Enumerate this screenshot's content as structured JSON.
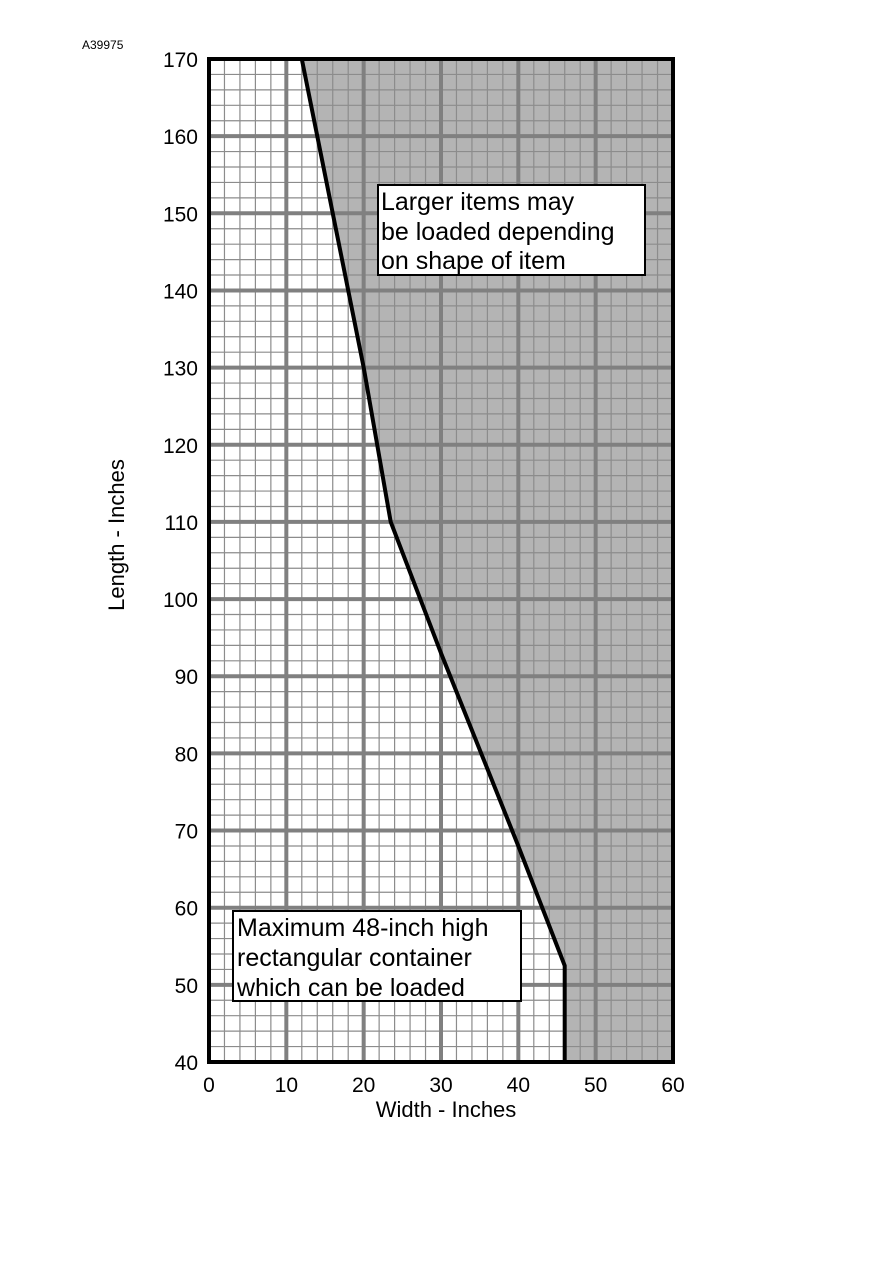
{
  "figure_id": "A39975",
  "colors": {
    "shaded_region": "#b4b4b4",
    "major_grid": "#808080",
    "minor_grid": "#8c8c8c",
    "boundary": "#000000",
    "background": "#ffffff"
  },
  "chart_data": {
    "type": "area",
    "title": "",
    "xlabel": "Width - Inches",
    "ylabel": "Length - Inches",
    "xlim": [
      0,
      60
    ],
    "ylim": [
      40,
      170
    ],
    "x_ticks": [
      "0",
      "10",
      "20",
      "30",
      "40",
      "50",
      "60"
    ],
    "y_ticks": [
      "40",
      "50",
      "60",
      "70",
      "80",
      "90",
      "100",
      "110",
      "120",
      "130",
      "140",
      "150",
      "160",
      "170"
    ],
    "grid": true,
    "major_grid_step": {
      "x": 10,
      "y": 10
    },
    "minor_grid_step": {
      "x": 2,
      "y": 2
    },
    "series": [
      {
        "x": [
          12,
          20,
          23.5,
          30,
          40,
          46,
          46
        ],
        "y": [
          170,
          130,
          110,
          93,
          68,
          52.5,
          40
        ]
      }
    ],
    "annotations": {
      "upper": [
        "Larger items may",
        "be loaded depending",
        "on shape of item"
      ],
      "lower": [
        "Maximum 48-inch high",
        "rectangular container",
        "which can be loaded"
      ]
    }
  }
}
